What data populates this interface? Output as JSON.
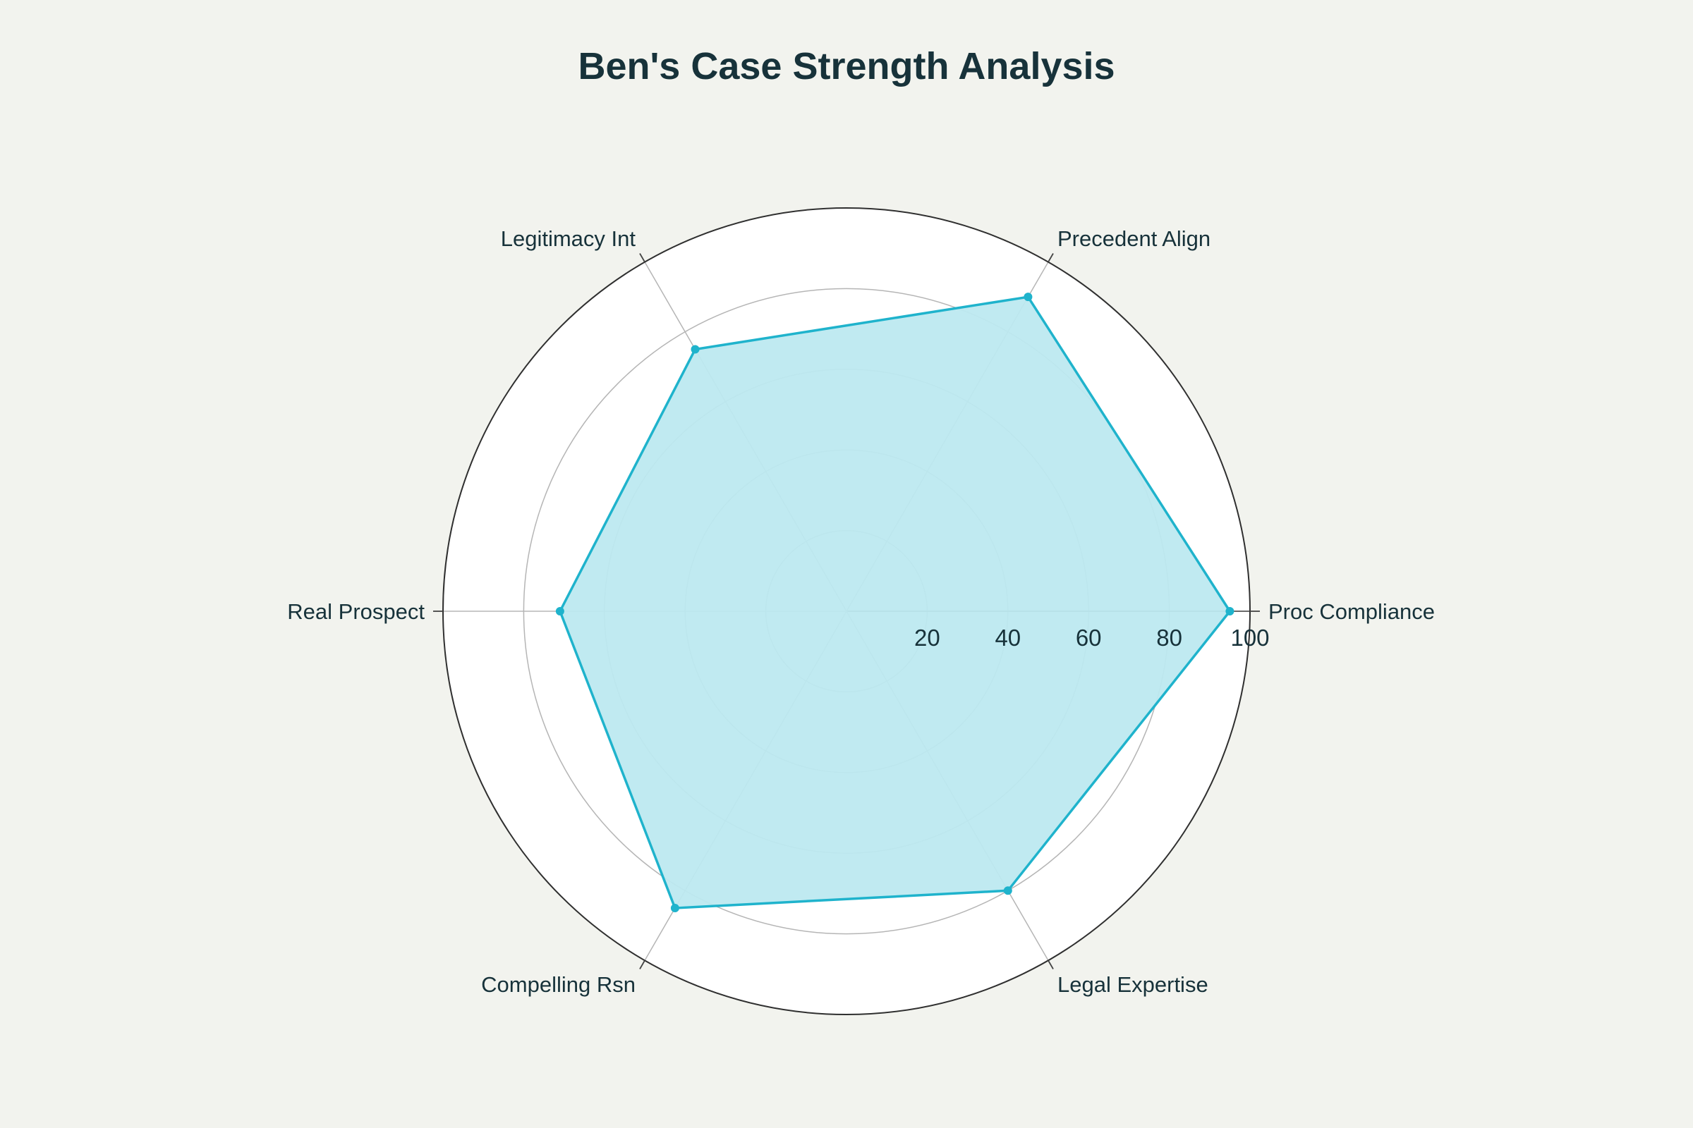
{
  "chart_data": {
    "type": "radar",
    "title": "Ben's Case Strength Analysis",
    "categories": [
      "Proc Compliance",
      "Precedent Align",
      "Legitimacy Int",
      "Real Prospect",
      "Compelling Rsn",
      "Legal Expertise"
    ],
    "series": [
      {
        "values": [
          95,
          90,
          75,
          71,
          85,
          80
        ]
      }
    ],
    "radial_range": [
      0,
      100
    ],
    "radial_ticks": [
      20,
      40,
      60,
      80,
      100
    ],
    "radial_tick_labels": [
      "20",
      "40",
      "60",
      "80",
      "100"
    ],
    "grid": true,
    "legend": "none",
    "colors": {
      "background": "#f2f3ee",
      "plot_background": "#ffffff",
      "series_line": "#1fb3cc",
      "series_fill": "#bde9f0",
      "grid": "#b5b5b5",
      "outer_ring": "#2f2f2f",
      "text": "#17323a"
    }
  }
}
